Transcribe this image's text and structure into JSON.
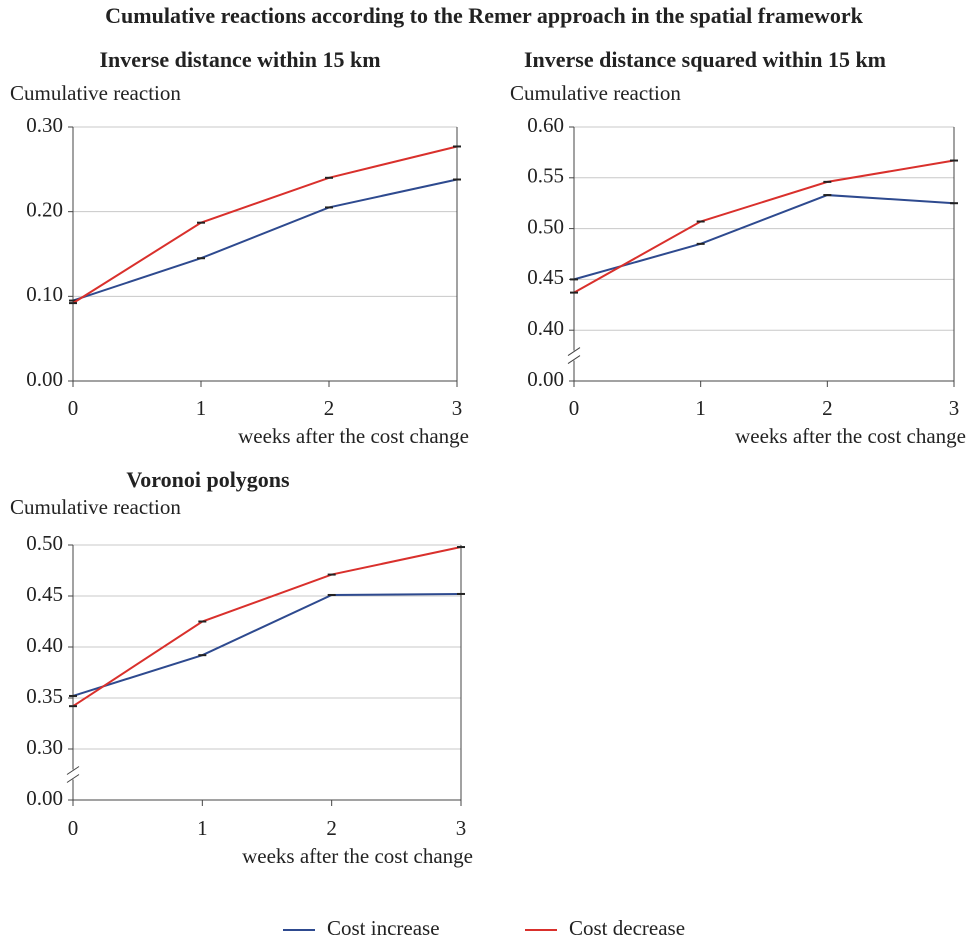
{
  "title": "Cumulative reactions according to the Remer approach in the spatial framework",
  "chart_data": [
    {
      "type": "line",
      "title": "Inverse distance within 15 km",
      "y_label": "Cumulative reaction",
      "x_label": "weeks after the cost change",
      "x": [
        0,
        1,
        2,
        3
      ],
      "xlim": [
        0,
        3
      ],
      "xticks": [
        0,
        1,
        2,
        3
      ],
      "ylim": [
        0,
        0.3
      ],
      "yticks": [
        {
          "value": 0,
          "label": "0.00"
        },
        {
          "value": 0.1,
          "label": "0.10"
        },
        {
          "value": 0.2,
          "label": "0.20"
        },
        {
          "value": 0.3,
          "label": "0.30"
        }
      ],
      "grid": true,
      "series": [
        {
          "name": "Cost increase",
          "color": "#2e4a8f",
          "values": [
            0.095,
            0.145,
            0.205,
            0.238
          ]
        },
        {
          "name": "Cost decrease",
          "color": "#d9302c",
          "values": [
            0.092,
            0.187,
            0.24,
            0.277
          ]
        }
      ]
    },
    {
      "type": "line",
      "title": "Inverse distance squared within 15 km",
      "y_label": "Cumulative reaction",
      "x_label": "weeks after the cost change",
      "x": [
        0,
        1,
        2,
        3
      ],
      "xlim": [
        0,
        3
      ],
      "xticks": [
        0,
        1,
        2,
        3
      ],
      "ylim": [
        0,
        0.6
      ],
      "ybreak": [
        0,
        0.4
      ],
      "yticks": [
        {
          "value": 0,
          "label": "0.00"
        },
        {
          "value": 0.4,
          "label": "0.40"
        },
        0.45,
        {
          "value": 0.5,
          "label": "0.50"
        },
        0.55,
        {
          "value": 0.6,
          "label": "0.60"
        }
      ],
      "grid": true,
      "series": [
        {
          "name": "Cost increase",
          "color": "#2e4a8f",
          "values": [
            0.45,
            0.485,
            0.533,
            0.525
          ]
        },
        {
          "name": "Cost decrease",
          "color": "#d9302c",
          "values": [
            0.437,
            0.507,
            0.546,
            0.567
          ]
        }
      ]
    },
    {
      "type": "line",
      "title": "Voronoi polygons",
      "y_label": "Cumulative reaction",
      "x_label": "weeks after the cost change",
      "x": [
        0,
        1,
        2,
        3
      ],
      "xlim": [
        0,
        3
      ],
      "xticks": [
        0,
        1,
        2,
        3
      ],
      "ylim": [
        0,
        0.5
      ],
      "ybreak": [
        0,
        0.3
      ],
      "yticks": [
        {
          "value": 0,
          "label": "0.00"
        },
        {
          "value": 0.3,
          "label": "0.30"
        },
        0.35,
        {
          "value": 0.4,
          "label": "0.40"
        },
        0.45,
        {
          "value": 0.5,
          "label": "0.50"
        }
      ],
      "grid": true,
      "series": [
        {
          "name": "Cost increase",
          "color": "#2e4a8f",
          "values": [
            0.352,
            0.392,
            0.451,
            0.452
          ]
        },
        {
          "name": "Cost decrease",
          "color": "#d9302c",
          "values": [
            0.342,
            0.425,
            0.471,
            0.498
          ]
        }
      ]
    }
  ]
}
